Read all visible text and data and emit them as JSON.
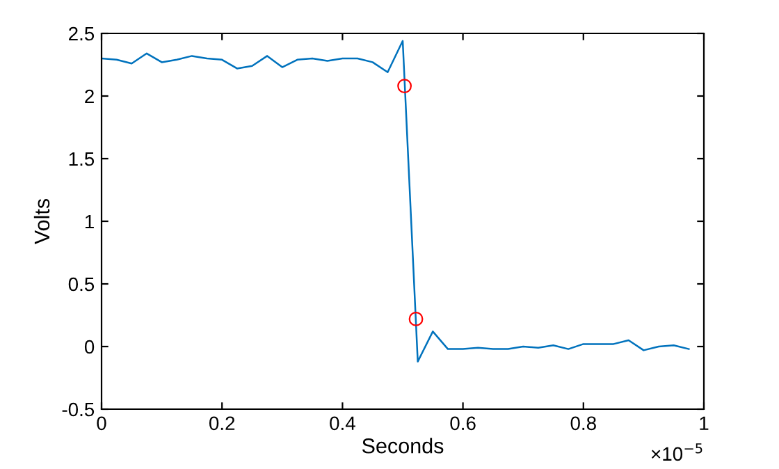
{
  "chart_data": {
    "type": "line",
    "xlabel": "Seconds",
    "ylabel": "Volts",
    "xlim": [
      0,
      1
    ],
    "xticks": [
      0,
      0.2,
      0.4,
      0.6,
      0.8,
      1
    ],
    "ylim": [
      -0.5,
      2.5
    ],
    "yticks": [
      -0.5,
      0,
      0.5,
      1,
      1.5,
      2,
      2.5
    ],
    "annotations": [
      "×10$^{−5}$"
    ],
    "grid": false,
    "legend": false,
    "series": [
      {
        "color": "#0072bd",
        "marker": "none",
        "x": [
          0,
          0.025,
          0.05,
          0.075,
          0.1,
          0.125,
          0.15,
          0.175,
          0.2,
          0.225,
          0.25,
          0.275,
          0.3,
          0.325,
          0.35,
          0.375,
          0.4,
          0.425,
          0.45,
          0.475,
          0.5,
          0.525,
          0.55,
          0.575,
          0.6,
          0.625,
          0.65,
          0.675,
          0.7,
          0.725,
          0.75,
          0.775,
          0.8,
          0.825,
          0.85,
          0.875,
          0.9,
          0.925,
          0.95,
          0.975
        ],
        "values": [
          2.3,
          2.29,
          2.26,
          2.34,
          2.27,
          2.29,
          2.32,
          2.3,
          2.29,
          2.22,
          2.24,
          2.32,
          2.23,
          2.29,
          2.3,
          2.28,
          2.3,
          2.3,
          2.27,
          2.19,
          2.44,
          -0.12,
          0.12,
          -0.02,
          -0.02,
          -0.01,
          -0.02,
          -0.02,
          0.0,
          -0.01,
          0.01,
          -0.02,
          0.02,
          0.02,
          0.02,
          0.05,
          -0.03,
          0.0,
          0.01,
          -0.02
        ]
      },
      {
        "type": "scatter",
        "color": "#ff0000",
        "marker": "circle",
        "x": [
          0.503,
          0.522
        ],
        "values": [
          2.08,
          0.22
        ]
      }
    ]
  }
}
